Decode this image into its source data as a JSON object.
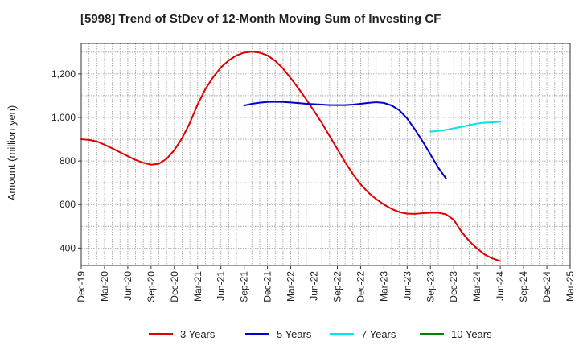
{
  "chart_data": {
    "type": "line",
    "title": "[5998]  Trend of StDev of 12-Month Moving Sum of Investing CF",
    "ylabel": "Amount (million yen)",
    "xlabel": "",
    "ylim": [
      320,
      1340
    ],
    "y_ticks": [
      400,
      600,
      800,
      1000,
      1200
    ],
    "y_tick_labels": [
      "400",
      "600",
      "800",
      "1,000",
      "1,200"
    ],
    "x_tick_labels": [
      "Dec-19",
      "Mar-20",
      "Jun-20",
      "Sep-20",
      "Dec-20",
      "Mar-21",
      "Jun-21",
      "Sep-21",
      "Dec-21",
      "Mar-22",
      "Jun-22",
      "Sep-22",
      "Dec-22",
      "Mar-23",
      "Jun-23",
      "Sep-23",
      "Dec-23",
      "Mar-24",
      "Jun-24",
      "Sep-24",
      "Dec-24",
      "Mar-25"
    ],
    "grid": true,
    "legend_position": "bottom",
    "series": [
      {
        "name": "3 Years",
        "color": "#e00000",
        "start_index": 0,
        "values": [
          900,
          897,
          890,
          875,
          858,
          840,
          822,
          805,
          792,
          783,
          787,
          810,
          850,
          905,
          975,
          1060,
          1130,
          1185,
          1230,
          1262,
          1285,
          1298,
          1302,
          1298,
          1285,
          1260,
          1225,
          1180,
          1133,
          1083,
          1030,
          975,
          915,
          855,
          795,
          740,
          693,
          655,
          625,
          600,
          580,
          565,
          558,
          557,
          560,
          562,
          562,
          555,
          530,
          475,
          432,
          398,
          370,
          352,
          340
        ]
      },
      {
        "name": "5 Years",
        "color": "#0000cc",
        "start_index": 21,
        "values": [
          1055,
          1063,
          1068,
          1071,
          1072,
          1071,
          1069,
          1066,
          1063,
          1061,
          1059,
          1057,
          1057,
          1057,
          1059,
          1063,
          1067,
          1070,
          1067,
          1055,
          1033,
          995,
          945,
          890,
          830,
          770,
          720
        ]
      },
      {
        "name": "7 Years",
        "color": "#00e5e5",
        "start_index": 45,
        "values": [
          935,
          938,
          943,
          950,
          957,
          965,
          972,
          976,
          978,
          980
        ]
      },
      {
        "name": "10 Years",
        "color": "#008000",
        "start_index": 0,
        "values": []
      }
    ]
  }
}
